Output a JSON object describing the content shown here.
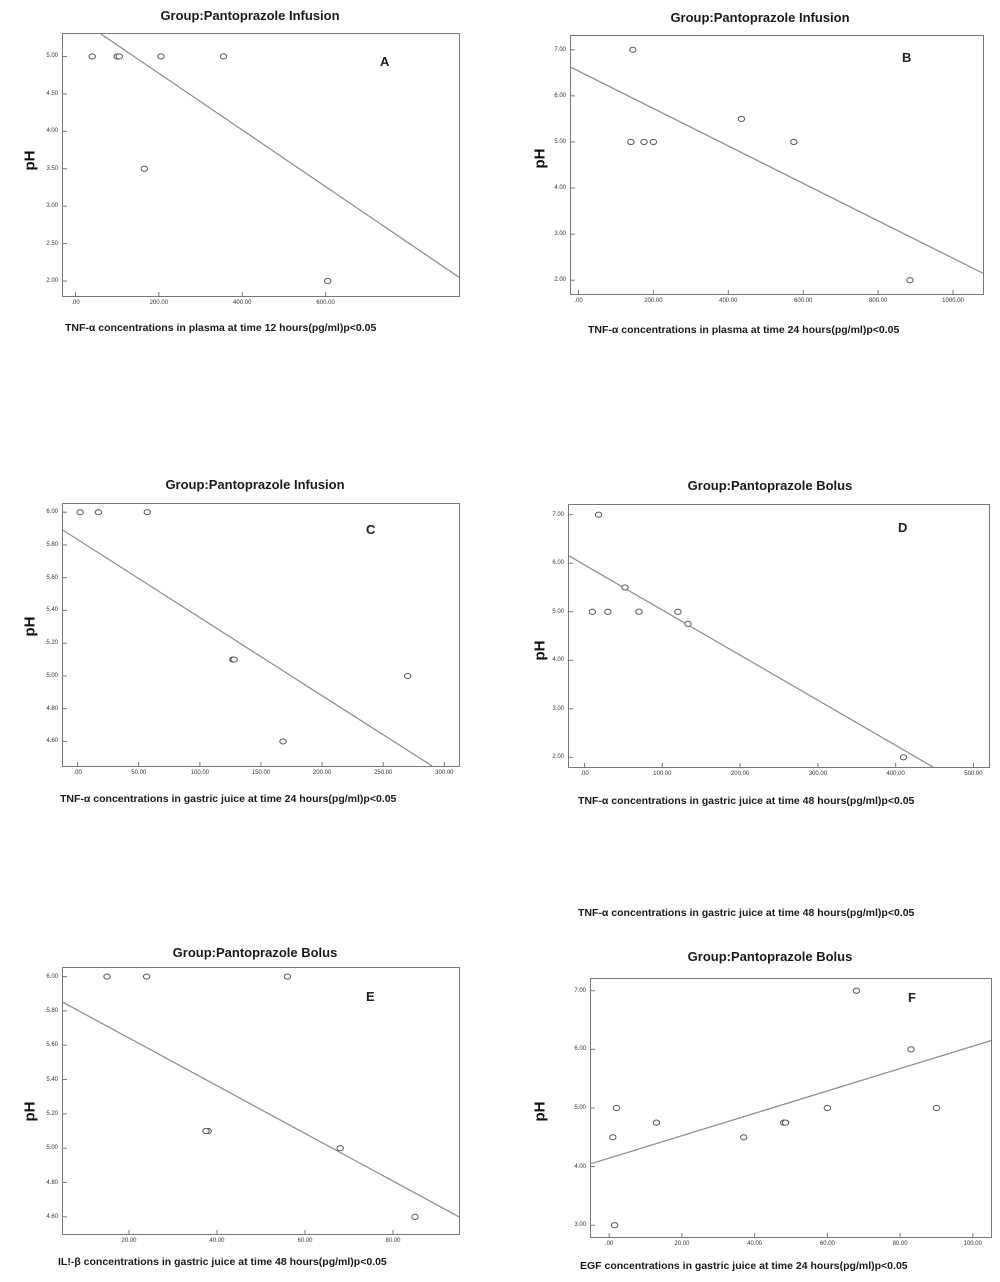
{
  "stray_label": "TNF-α concentrations in gastric juice at time 48 hours(pg/ml)p<0.05",
  "chart_data": [
    {
      "id": "A",
      "type": "scatter",
      "title": "Group:Pantoprazole Infusion",
      "panel_letter": "A",
      "xlabel": "TNF-α concentrations in plasma at time 12 hours(pg/ml)p<0.05",
      "ylabel": "pH",
      "xlim": [
        -30,
        920
      ],
      "ylim": [
        1.8,
        5.3
      ],
      "xticks": [
        {
          "v": 0,
          "label": ".00"
        },
        {
          "v": 200,
          "label": "200.00"
        },
        {
          "v": 400,
          "label": "400.00"
        },
        {
          "v": 600,
          "label": "600.00"
        }
      ],
      "yticks": [
        {
          "v": 2,
          "label": "2.00"
        },
        {
          "v": 2.5,
          "label": "2.50"
        },
        {
          "v": 3,
          "label": "3.00"
        },
        {
          "v": 3.5,
          "label": "3.50"
        },
        {
          "v": 4,
          "label": "4.00"
        },
        {
          "v": 4.5,
          "label": "4.50"
        },
        {
          "v": 5,
          "label": "5.00"
        }
      ],
      "points": [
        [
          40,
          5.0
        ],
        [
          100,
          5.0
        ],
        [
          105,
          5.0
        ],
        [
          205,
          5.0
        ],
        [
          355,
          5.0
        ],
        [
          165,
          3.5
        ],
        [
          605,
          2.0
        ]
      ],
      "fit_line": [
        [
          40,
          5.38
        ],
        [
          920,
          2.05
        ]
      ]
    },
    {
      "id": "B",
      "type": "scatter",
      "title": "Group:Pantoprazole Infusion",
      "panel_letter": "B",
      "xlabel": "TNF-α concentrations in plasma at time 24 hours(pg/ml)p<0.05",
      "ylabel": "pH",
      "xlim": [
        -20,
        1080
      ],
      "ylim": [
        1.7,
        7.3
      ],
      "xticks": [
        {
          "v": 0,
          "label": ".00"
        },
        {
          "v": 200,
          "label": "200.00"
        },
        {
          "v": 400,
          "label": "400.00"
        },
        {
          "v": 600,
          "label": "600.00"
        },
        {
          "v": 800,
          "label": "800.00"
        },
        {
          "v": 1000,
          "label": "1000.00"
        }
      ],
      "yticks": [
        {
          "v": 2,
          "label": "2.00"
        },
        {
          "v": 3,
          "label": "3.00"
        },
        {
          "v": 4,
          "label": "4.00"
        },
        {
          "v": 5,
          "label": "5.00"
        },
        {
          "v": 6,
          "label": "6.00"
        },
        {
          "v": 7,
          "label": "7.00"
        }
      ],
      "points": [
        [
          145,
          7.0
        ],
        [
          140,
          5.0
        ],
        [
          175,
          5.0
        ],
        [
          200,
          5.0
        ],
        [
          435,
          5.5
        ],
        [
          575,
          5.0
        ],
        [
          885,
          2.0
        ]
      ],
      "fit_line": [
        [
          -20,
          6.62
        ],
        [
          1080,
          2.15
        ]
      ]
    },
    {
      "id": "C",
      "type": "scatter",
      "title": "Group:Pantoprazole Infusion",
      "panel_letter": "C",
      "xlabel": "TNF-α concentrations in gastric juice at time 24 hours(pg/ml)p<0.05",
      "ylabel": "pH",
      "xlim": [
        -12,
        312
      ],
      "ylim": [
        4.45,
        6.05
      ],
      "xticks": [
        {
          "v": 0,
          "label": ".00"
        },
        {
          "v": 50,
          "label": "50.00"
        },
        {
          "v": 100,
          "label": "100.00"
        },
        {
          "v": 150,
          "label": "150.00"
        },
        {
          "v": 200,
          "label": "200.00"
        },
        {
          "v": 250,
          "label": "250.00"
        },
        {
          "v": 300,
          "label": "300.00"
        }
      ],
      "yticks": [
        {
          "v": 4.6,
          "label": "4.60"
        },
        {
          "v": 4.8,
          "label": "4.80"
        },
        {
          "v": 5.0,
          "label": "5.00"
        },
        {
          "v": 5.2,
          "label": "5.20"
        },
        {
          "v": 5.4,
          "label": "5.40"
        },
        {
          "v": 5.6,
          "label": "5.60"
        },
        {
          "v": 5.8,
          "label": "5.80"
        },
        {
          "v": 6.0,
          "label": "6.00"
        }
      ],
      "points": [
        [
          2,
          6.0
        ],
        [
          17,
          6.0
        ],
        [
          57,
          6.0
        ],
        [
          127,
          5.1
        ],
        [
          128,
          5.1
        ],
        [
          168,
          4.6
        ],
        [
          270,
          5.0
        ]
      ],
      "fit_line": [
        [
          -12,
          5.89
        ],
        [
          290,
          4.45
        ]
      ]
    },
    {
      "id": "D",
      "type": "scatter",
      "title": "Group:Pantoprazole Bolus",
      "panel_letter": "D",
      "xlabel": "TNF-α concentrations in gastric juice at time 48 hours(pg/ml)p<0.05",
      "ylabel": "pH",
      "xlim": [
        -20,
        520
      ],
      "ylim": [
        1.8,
        7.2
      ],
      "xticks": [
        {
          "v": 0,
          "label": ".00"
        },
        {
          "v": 100,
          "label": "100.00"
        },
        {
          "v": 200,
          "label": "200.00"
        },
        {
          "v": 300,
          "label": "300.00"
        },
        {
          "v": 400,
          "label": "400.00"
        },
        {
          "v": 500,
          "label": "500.00"
        }
      ],
      "yticks": [
        {
          "v": 2,
          "label": "2.00"
        },
        {
          "v": 3,
          "label": "3.00"
        },
        {
          "v": 4,
          "label": "4.00"
        },
        {
          "v": 5,
          "label": "5.00"
        },
        {
          "v": 6,
          "label": "6.00"
        },
        {
          "v": 7,
          "label": "7.00"
        }
      ],
      "points": [
        [
          18,
          7.0
        ],
        [
          10,
          5.0
        ],
        [
          30,
          5.0
        ],
        [
          52,
          5.5
        ],
        [
          70,
          5.0
        ],
        [
          120,
          5.0
        ],
        [
          133,
          4.75
        ],
        [
          410,
          2.0
        ]
      ],
      "fit_line": [
        [
          -20,
          6.15
        ],
        [
          448,
          1.8
        ]
      ]
    },
    {
      "id": "E",
      "type": "scatter",
      "title": "Group:Pantoprazole Bolus",
      "panel_letter": "E",
      "xlabel": "IL!-β concentrations in gastric juice at time 48 hours(pg/ml)p<0.05",
      "ylabel": "pH",
      "xlim": [
        5,
        95
      ],
      "ylim": [
        4.5,
        6.05
      ],
      "xticks": [
        {
          "v": 20,
          "label": "20.00"
        },
        {
          "v": 40,
          "label": "40.00"
        },
        {
          "v": 60,
          "label": "60.00"
        },
        {
          "v": 80,
          "label": "80.00"
        }
      ],
      "yticks": [
        {
          "v": 4.6,
          "label": "4.60"
        },
        {
          "v": 4.8,
          "label": "4.80"
        },
        {
          "v": 5.0,
          "label": "5.00"
        },
        {
          "v": 5.2,
          "label": "5.20"
        },
        {
          "v": 5.4,
          "label": "5.40"
        },
        {
          "v": 5.6,
          "label": "5.60"
        },
        {
          "v": 5.8,
          "label": "5.80"
        },
        {
          "v": 6.0,
          "label": "6.00"
        }
      ],
      "points": [
        [
          15,
          6.0
        ],
        [
          24,
          6.0
        ],
        [
          56,
          6.0
        ],
        [
          38,
          5.1
        ],
        [
          37.5,
          5.1
        ],
        [
          68,
          5.0
        ],
        [
          85,
          4.6
        ]
      ],
      "fit_line": [
        [
          5,
          5.85
        ],
        [
          95,
          4.6
        ]
      ]
    },
    {
      "id": "F",
      "type": "scatter",
      "title": "Group:Pantoprazole Bolus",
      "panel_letter": "F",
      "xlabel": "EGF concentrations in gastric juice at time 24 hours(pg/ml)p<0.05",
      "ylabel": "pH",
      "xlim": [
        -5,
        105
      ],
      "ylim": [
        2.8,
        7.2
      ],
      "xticks": [
        {
          "v": 0,
          "label": ".00"
        },
        {
          "v": 20,
          "label": "20.00"
        },
        {
          "v": 40,
          "label": "40.00"
        },
        {
          "v": 60,
          "label": "60.00"
        },
        {
          "v": 80,
          "label": "80.00"
        },
        {
          "v": 100,
          "label": "100.00"
        }
      ],
      "yticks": [
        {
          "v": 3,
          "label": "3.00"
        },
        {
          "v": 4,
          "label": "4.00"
        },
        {
          "v": 5,
          "label": "5.00"
        },
        {
          "v": 6,
          "label": "6.00"
        },
        {
          "v": 7,
          "label": "7.00"
        }
      ],
      "points": [
        [
          1,
          4.5
        ],
        [
          2,
          5.0
        ],
        [
          1.5,
          3.0
        ],
        [
          13,
          4.75
        ],
        [
          37,
          4.5
        ],
        [
          48,
          4.75
        ],
        [
          48.5,
          4.75
        ],
        [
          60,
          5.0
        ],
        [
          68,
          7.0
        ],
        [
          83,
          6.0
        ],
        [
          90,
          5.0
        ]
      ],
      "fit_line": [
        [
          -5,
          4.05
        ],
        [
          105,
          6.15
        ]
      ]
    }
  ]
}
